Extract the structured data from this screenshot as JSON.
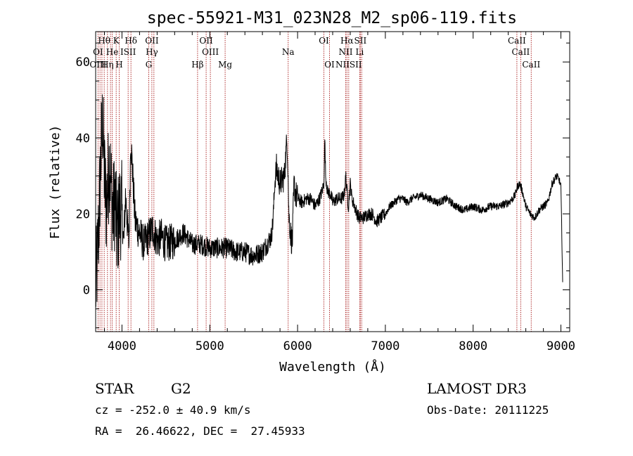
{
  "chart_data": {
    "type": "line",
    "title": "spec-55921-M31_023N28_M2_sp06-119.fits",
    "xlabel": "Wavelength (Å)",
    "ylabel": "Flux (relative)",
    "xlim": [
      3700,
      9100
    ],
    "ylim": [
      -11,
      68
    ],
    "xticks": [
      4000,
      5000,
      6000,
      7000,
      8000,
      9000
    ],
    "yticks": [
      0,
      20,
      40,
      60
    ],
    "spectrum_anchors": {
      "x": [
        3700,
        3720,
        3740,
        3760,
        3780,
        3800,
        3820,
        3840,
        3860,
        3880,
        3900,
        3920,
        3940,
        3960,
        3980,
        4000,
        4020,
        4040,
        4060,
        4080,
        4100,
        4150,
        4200,
        4250,
        4300,
        4350,
        4400,
        4450,
        4500,
        4600,
        4700,
        4800,
        4900,
        5000,
        5100,
        5200,
        5300,
        5400,
        5500,
        5600,
        5650,
        5700,
        5720,
        5740,
        5760,
        5780,
        5800,
        5850,
        5880,
        5890,
        5900,
        5920,
        5940,
        5960,
        5980,
        6000,
        6050,
        6100,
        6150,
        6200,
        6250,
        6280,
        6300,
        6310,
        6320,
        6340,
        6380,
        6400,
        6450,
        6500,
        6530,
        6550,
        6563,
        6580,
        6600,
        6620,
        6650,
        6680,
        6700,
        6750,
        6800,
        6850,
        6900,
        6950,
        7000,
        7050,
        7100,
        7150,
        7200,
        7250,
        7300,
        7400,
        7500,
        7600,
        7700,
        7800,
        7900,
        8000,
        8100,
        8200,
        8300,
        8400,
        8450,
        8480,
        8500,
        8530,
        8560,
        8600,
        8650,
        8700,
        8750,
        8800,
        8850,
        8900,
        8950,
        8980,
        9000,
        9020
      ],
      "y": [
        0,
        8,
        20,
        35,
        45,
        30,
        22,
        28,
        35,
        25,
        20,
        25,
        15,
        18,
        22,
        20,
        12,
        25,
        18,
        12,
        40,
        18,
        15,
        12,
        14,
        16,
        13,
        14,
        12,
        13,
        15,
        12,
        12,
        11,
        11,
        11,
        10,
        10,
        9,
        10,
        12,
        14,
        18,
        28,
        32,
        30,
        28,
        30,
        40,
        33,
        20,
        15,
        12,
        28,
        25,
        24,
        23,
        24,
        24,
        22,
        24,
        26,
        28,
        40,
        30,
        26,
        25,
        23,
        24,
        24,
        25,
        30,
        26,
        22,
        28,
        24,
        22,
        20,
        19,
        19,
        20,
        20,
        18,
        19,
        20,
        22,
        23,
        24,
        24,
        23,
        24,
        25,
        24,
        23,
        24,
        22,
        21,
        22,
        21,
        22,
        22,
        23,
        24,
        25,
        27,
        28,
        26,
        22,
        20,
        19,
        21,
        22,
        23,
        28,
        30,
        29,
        27,
        2
      ]
    },
    "lines": [
      {
        "label": "Hθ",
        "x": 3798,
        "row": 1
      },
      {
        "label": "K",
        "x": 3934,
        "row": 1
      },
      {
        "label": "Hδ",
        "x": 4102,
        "row": 1
      },
      {
        "label": "OII",
        "x": 4340,
        "row": 1
      },
      {
        "label": "OII",
        "x": 4959,
        "row": 1
      },
      {
        "label": "OI",
        "x": 6300,
        "row": 1
      },
      {
        "label": "Hα",
        "x": 6563,
        "row": 1
      },
      {
        "label": "SII",
        "x": 6716,
        "row": 1
      },
      {
        "label": "CaII",
        "x": 8498,
        "row": 1
      },
      {
        "label": "OI",
        "x": 3727,
        "row": 2
      },
      {
        "label": "He",
        "x": 3889,
        "row": 2
      },
      {
        "label": "ISII",
        "x": 4070,
        "row": 2
      },
      {
        "label": "Hγ",
        "x": 4340,
        "row": 2
      },
      {
        "label": "OIII",
        "x": 5007,
        "row": 2
      },
      {
        "label": "Na",
        "x": 5893,
        "row": 2
      },
      {
        "label": "NII",
        "x": 6548,
        "row": 2
      },
      {
        "label": "Li",
        "x": 6708,
        "row": 2
      },
      {
        "label": "CaII",
        "x": 8542,
        "row": 2
      },
      {
        "label": "OIII",
        "x": 3727,
        "row": 3
      },
      {
        "label": "Hη",
        "x": 3835,
        "row": 3
      },
      {
        "label": "H",
        "x": 3968,
        "row": 3
      },
      {
        "label": "G",
        "x": 4305,
        "row": 3
      },
      {
        "label": "Hβ",
        "x": 4861,
        "row": 3
      },
      {
        "label": "Mg",
        "x": 5175,
        "row": 3
      },
      {
        "label": "OI",
        "x": 6364,
        "row": 3
      },
      {
        "label": "NIISII",
        "x": 6583,
        "row": 3
      },
      {
        "label": "CaII",
        "x": 8662,
        "row": 3
      }
    ],
    "line_marker_x": [
      3727,
      3750,
      3771,
      3798,
      3835,
      3869,
      3889,
      3934,
      3968,
      4070,
      4102,
      4305,
      4340,
      4363,
      4861,
      4959,
      5007,
      5175,
      5893,
      6300,
      6364,
      6548,
      6563,
      6583,
      6708,
      6716,
      6731,
      8498,
      8542,
      8662
    ]
  },
  "info": {
    "object_class": "STAR",
    "subclass": "G2",
    "survey": "LAMOST DR3",
    "cz": "cz = -252.0 ± 40.9 km/s",
    "obs_date": "Obs-Date: 20111225",
    "coords": "RA =  26.46622, DEC =  27.45933"
  },
  "colors": {
    "line_marker": "#b03030",
    "spectrum": "#000000"
  }
}
